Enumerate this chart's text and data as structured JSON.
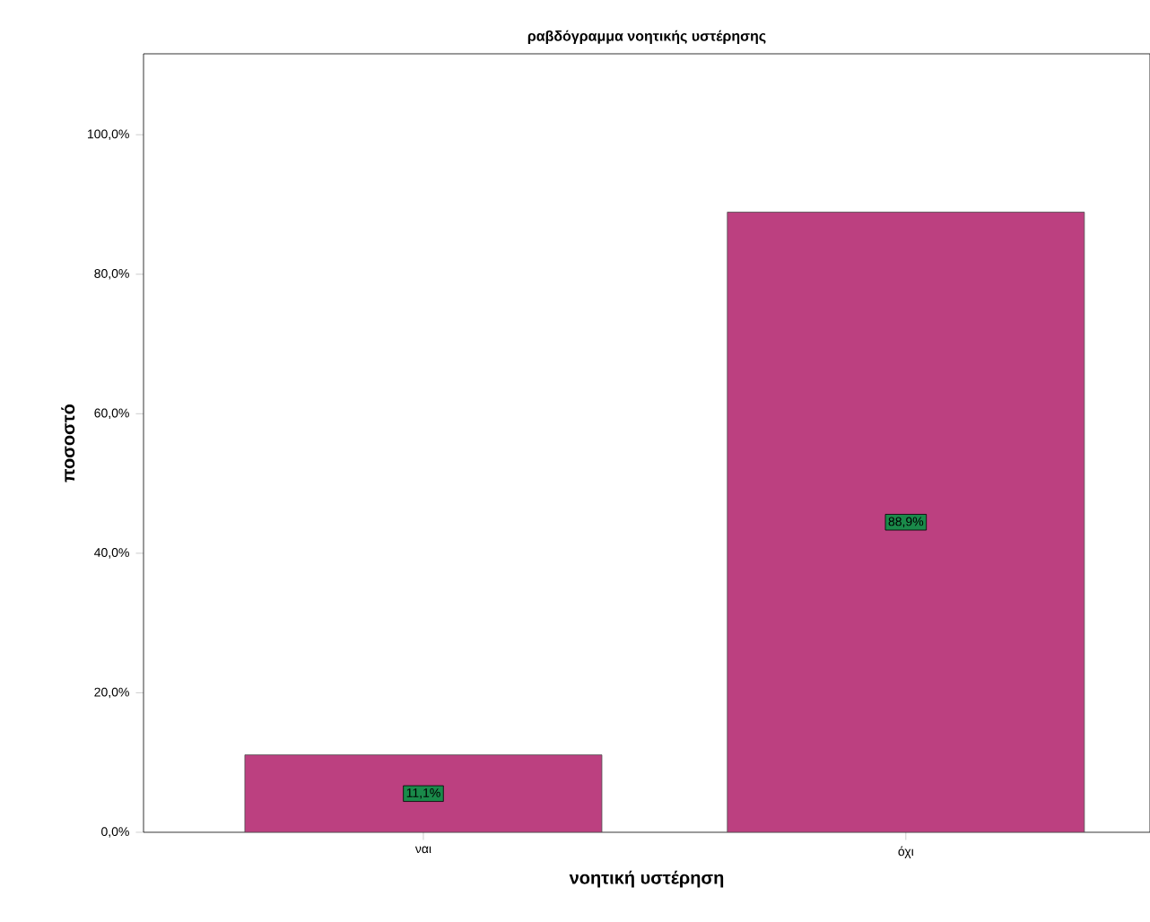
{
  "chart_data": {
    "type": "bar",
    "title": "ραβδόγραμμα νοητικής υστέρησης",
    "xlabel": "νοητική υστέρηση",
    "ylabel": "ποσοστό",
    "categories": [
      "ναι",
      "όχι"
    ],
    "values": [
      11.1,
      88.9
    ],
    "color": "#bc4080",
    "value_labels": [
      "11,1%",
      "88,9%"
    ],
    "ylim": [
      0,
      111.6
    ],
    "yticks": [
      {
        "value": 0,
        "label": "0,0%"
      },
      {
        "value": 20,
        "label": "20,0%"
      },
      {
        "value": 40,
        "label": "40,0%"
      },
      {
        "value": 60,
        "label": "60,0%"
      },
      {
        "value": 80,
        "label": "80,0%"
      },
      {
        "value": 100,
        "label": "100,0%"
      }
    ]
  }
}
